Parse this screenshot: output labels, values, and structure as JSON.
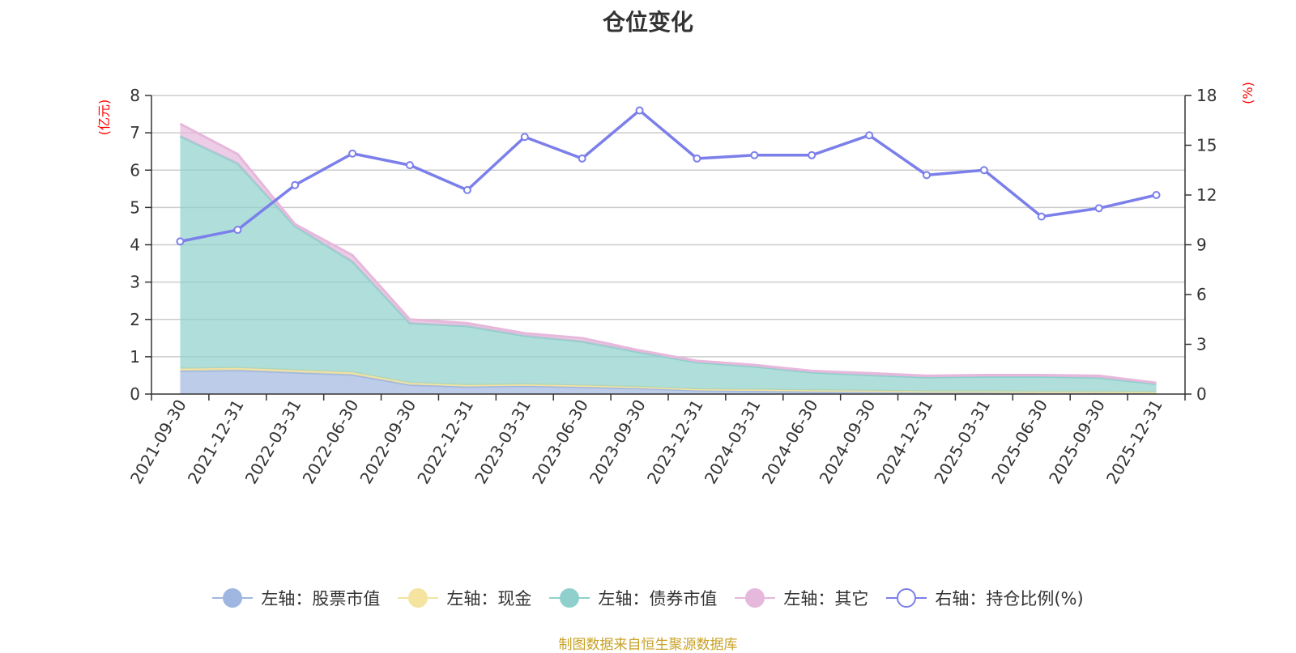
{
  "chart_data": {
    "type": "area",
    "title": "仓位变化",
    "categories": [
      "2021-09-30",
      "2021-12-31",
      "2022-03-31",
      "2022-06-30",
      "2022-09-30",
      "2022-12-31",
      "2023-03-31",
      "2023-06-30",
      "2023-09-30",
      "2023-12-31",
      "2024-03-31",
      "2024-06-30",
      "2024-09-30",
      "2024-12-31",
      "2025-03-31",
      "2025-06-30",
      "2025-09-30",
      "2025-12-31"
    ],
    "y_left": {
      "label": "(亿元)",
      "min": 0,
      "max": 8,
      "ticks": [
        0,
        1,
        2,
        3,
        4,
        5,
        6,
        7,
        8
      ]
    },
    "y_right": {
      "label": "(%)",
      "min": 0,
      "max": 18,
      "ticks": [
        0,
        3,
        6,
        9,
        12,
        15,
        18
      ]
    },
    "series": [
      {
        "name": "左轴：股票市值",
        "axis": "left",
        "type": "stacked-area",
        "color": "#9fb7e0",
        "values": [
          0.62,
          0.64,
          0.58,
          0.52,
          0.25,
          0.2,
          0.22,
          0.19,
          0.16,
          0.1,
          0.09,
          0.07,
          0.07,
          0.05,
          0.05,
          0.04,
          0.04,
          0.03
        ]
      },
      {
        "name": "左轴：现金",
        "axis": "left",
        "type": "stacked-area",
        "color": "#f5e3a0",
        "values": [
          0.06,
          0.06,
          0.06,
          0.06,
          0.05,
          0.04,
          0.04,
          0.04,
          0.03,
          0.03,
          0.03,
          0.03,
          0.02,
          0.02,
          0.02,
          0.02,
          0.02,
          0.02
        ]
      },
      {
        "name": "左轴：债券市值",
        "axis": "left",
        "type": "stacked-area",
        "color": "#8fd0cc",
        "values": [
          6.23,
          5.48,
          3.86,
          2.97,
          1.6,
          1.58,
          1.3,
          1.18,
          0.93,
          0.72,
          0.62,
          0.48,
          0.42,
          0.38,
          0.4,
          0.41,
          0.38,
          0.22
        ]
      },
      {
        "name": "左轴：其它",
        "axis": "left",
        "type": "stacked-area",
        "color": "#e6b8dc",
        "values": [
          0.33,
          0.25,
          0.05,
          0.17,
          0.1,
          0.08,
          0.07,
          0.09,
          0.05,
          0.04,
          0.04,
          0.04,
          0.05,
          0.04,
          0.04,
          0.04,
          0.05,
          0.03
        ]
      },
      {
        "name": "右轴：持仓比例(%)",
        "axis": "right",
        "type": "line",
        "color": "#7b7fea",
        "values": [
          9.2,
          9.9,
          12.6,
          14.5,
          13.8,
          12.3,
          15.5,
          14.2,
          17.1,
          14.2,
          14.4,
          14.4,
          15.6,
          13.2,
          13.5,
          10.7,
          11.2,
          12.0
        ]
      }
    ]
  },
  "source": "制图数据来自恒生聚源数据库"
}
